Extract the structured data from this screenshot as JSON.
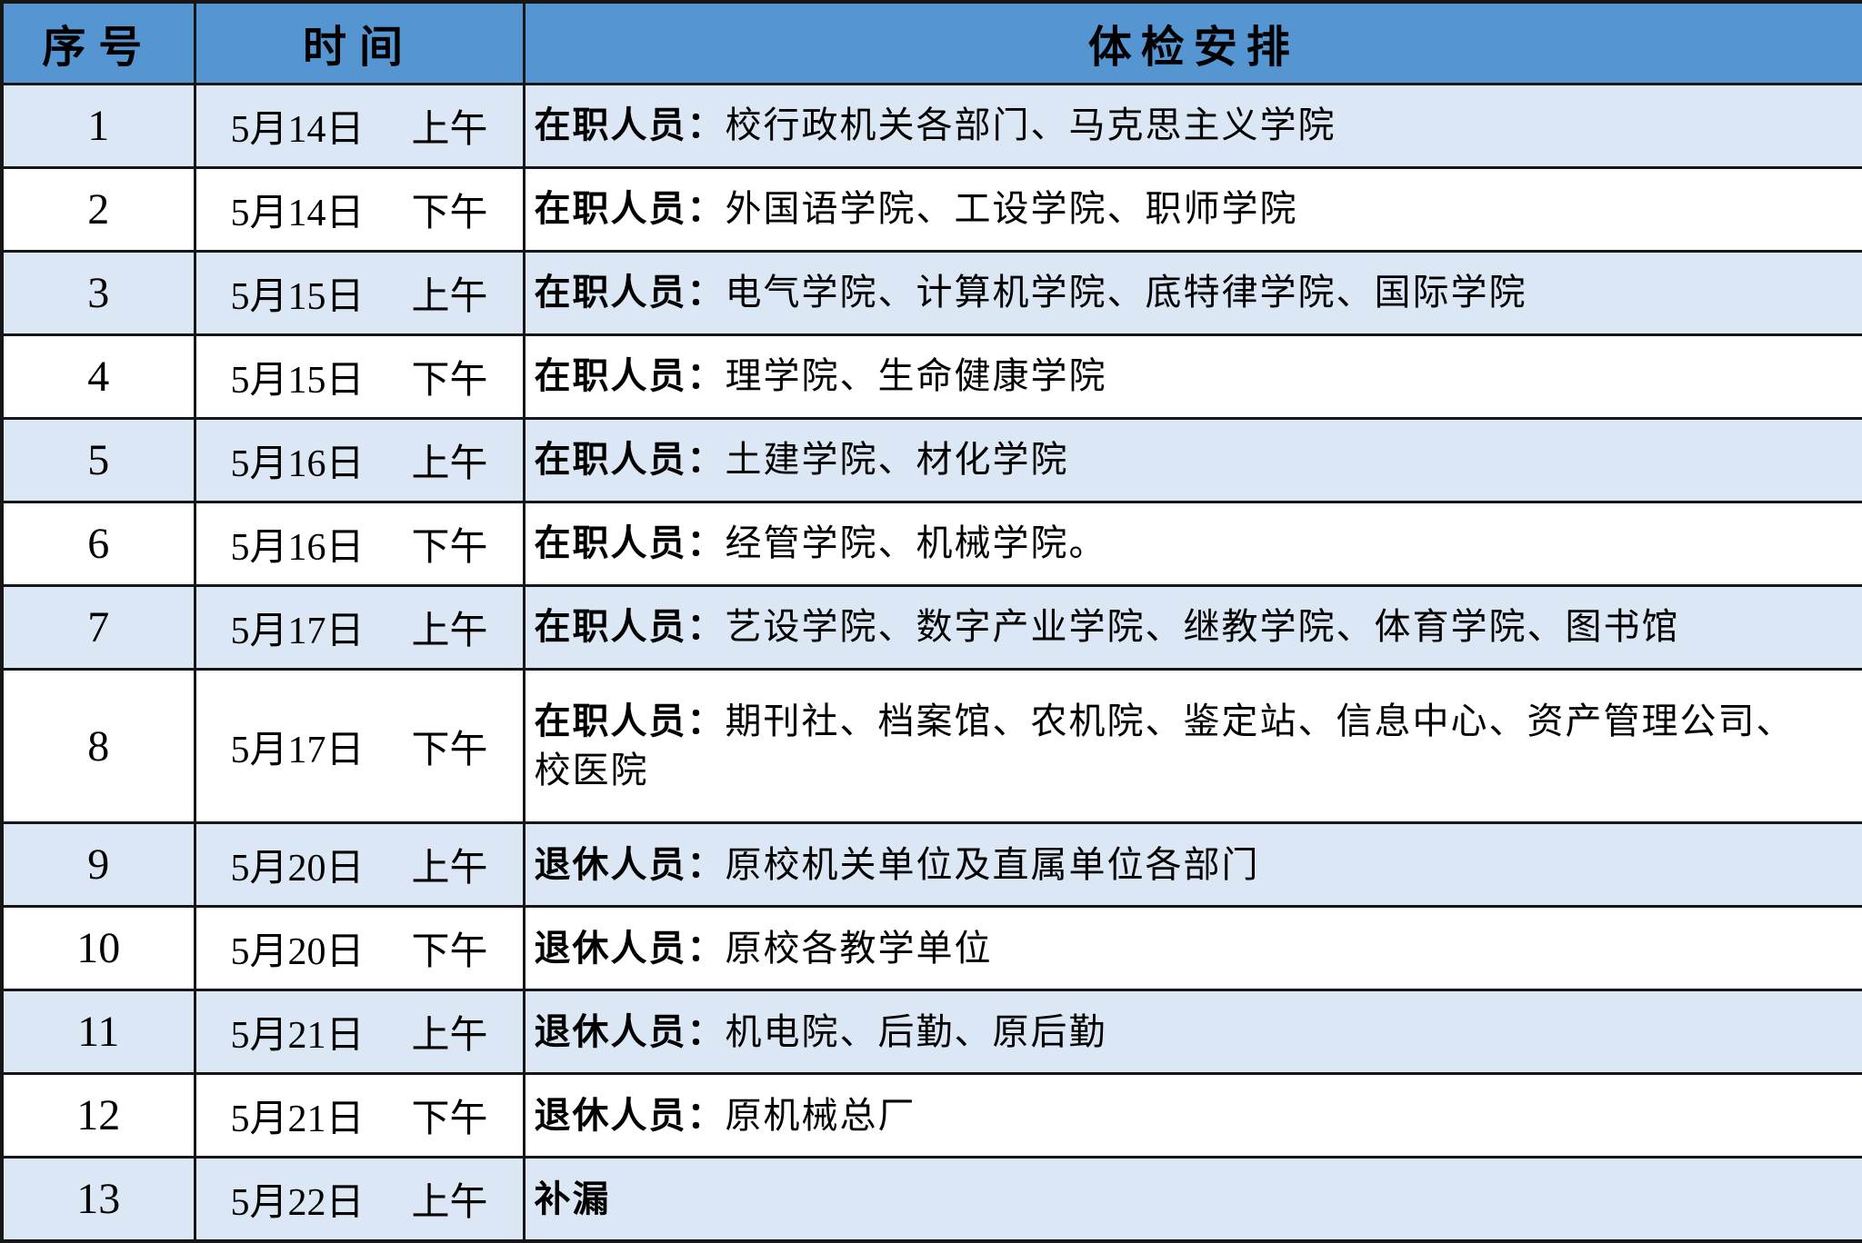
{
  "table": {
    "columns": [
      {
        "label": "序号"
      },
      {
        "label": "时间"
      },
      {
        "label": "体检安排"
      }
    ],
    "rows": [
      {
        "no": "1",
        "date": "5月14日",
        "period": "上午",
        "group": "在职人员：",
        "detail": "校行政机关各部门、马克思主义学院",
        "detail2": ""
      },
      {
        "no": "2",
        "date": "5月14日",
        "period": "下午",
        "group": "在职人员：",
        "detail": "外国语学院、工设学院、职师学院",
        "detail2": ""
      },
      {
        "no": "3",
        "date": "5月15日",
        "period": "上午",
        "group": "在职人员：",
        "detail": "电气学院、计算机学院、底特律学院、国际学院",
        "detail2": ""
      },
      {
        "no": "4",
        "date": "5月15日",
        "period": "下午",
        "group": "在职人员：",
        "detail": "理学院、生命健康学院",
        "detail2": ""
      },
      {
        "no": "5",
        "date": "5月16日",
        "period": "上午",
        "group": "在职人员：",
        "detail": "土建学院、材化学院",
        "detail2": ""
      },
      {
        "no": "6",
        "date": "5月16日",
        "period": "下午",
        "group": "在职人员：",
        "detail": "经管学院、机械学院。",
        "detail2": ""
      },
      {
        "no": "7",
        "date": "5月17日",
        "period": "上午",
        "group": "在职人员：",
        "detail": "艺设学院、数字产业学院、继教学院、体育学院、图书馆",
        "detail2": ""
      },
      {
        "no": "8",
        "date": "5月17日",
        "period": "下午",
        "group": "在职人员：",
        "detail": "期刊社、档案馆、农机院、鉴定站、信息中心、资产管理公司、",
        "detail2": "校医院"
      },
      {
        "no": "9",
        "date": "5月20日",
        "period": "上午",
        "group": "退休人员：",
        "detail": "原校机关单位及直属单位各部门",
        "detail2": ""
      },
      {
        "no": "10",
        "date": "5月20日",
        "period": "下午",
        "group": "退休人员：",
        "detail": "原校各教学单位",
        "detail2": ""
      },
      {
        "no": "11",
        "date": "5月21日",
        "period": "上午",
        "group": "退休人员：",
        "detail": "机电院、后勤、原后勤",
        "detail2": ""
      },
      {
        "no": "12",
        "date": "5月21日",
        "period": "下午",
        "group": "退休人员：",
        "detail": "原机械总厂",
        "detail2": ""
      },
      {
        "no": "13",
        "date": "5月22日",
        "period": "上午",
        "group": "补漏",
        "detail": "",
        "detail2": ""
      }
    ]
  },
  "colors": {
    "header_bg": "#5596d2",
    "alt_row_bg": "#dbe7f4",
    "border": "#161616"
  }
}
